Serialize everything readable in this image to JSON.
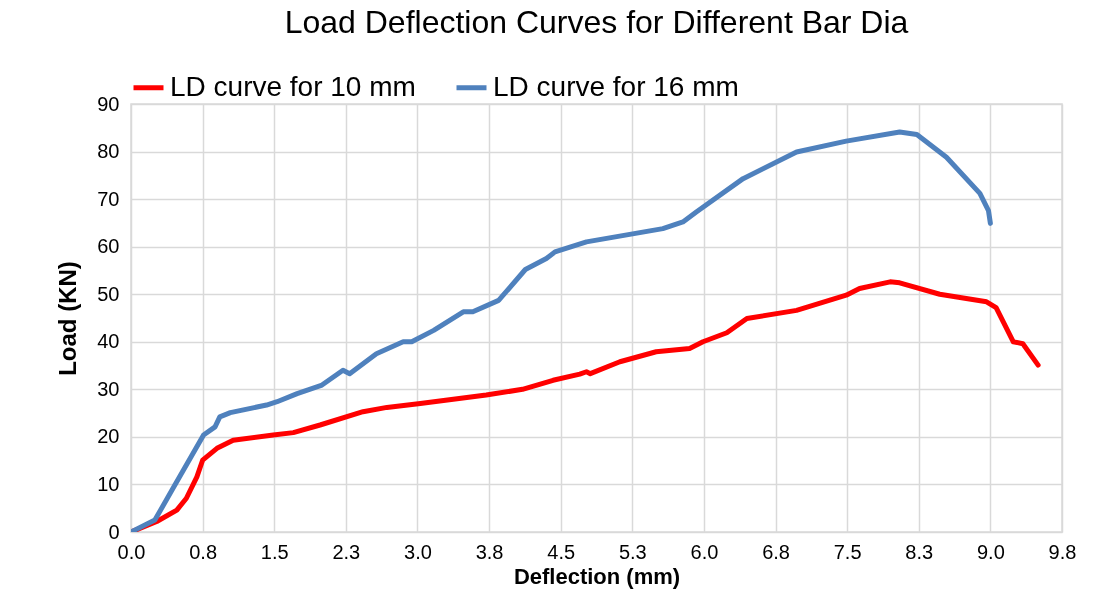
{
  "chart_data": {
    "type": "line",
    "title": "Load Deflection Curves for Different Bar Dia",
    "xlabel": "Deflection (mm)",
    "ylabel": "Load (KN)",
    "xlim": [
      0,
      9.75
    ],
    "ylim": [
      0,
      90
    ],
    "xticks": [
      {
        "value": 0,
        "label": "0.0"
      },
      {
        "value": 0.75,
        "label": "0.8"
      },
      {
        "value": 1.5,
        "label": "1.5"
      },
      {
        "value": 2.25,
        "label": "2.3"
      },
      {
        "value": 3,
        "label": "3.0"
      },
      {
        "value": 3.75,
        "label": "3.8"
      },
      {
        "value": 4.5,
        "label": "4.5"
      },
      {
        "value": 5.25,
        "label": "5.3"
      },
      {
        "value": 6,
        "label": "6.0"
      },
      {
        "value": 6.75,
        "label": "6.8"
      },
      {
        "value": 7.5,
        "label": "7.5"
      },
      {
        "value": 8.25,
        "label": "8.3"
      },
      {
        "value": 9,
        "label": "9.0"
      },
      {
        "value": 9.75,
        "label": "9.8"
      }
    ],
    "yticks": [
      0,
      10,
      20,
      30,
      40,
      50,
      60,
      70,
      80,
      90
    ],
    "grid": true,
    "legend": "top",
    "marker": "none",
    "line_style": "solid",
    "series": [
      {
        "name": "LD curve for 10 mm",
        "color": "#ff0000",
        "x": [
          0,
          0.27,
          0.48,
          0.58,
          0.69,
          0.75,
          0.9,
          1.07,
          1.49,
          1.7,
          1.98,
          2.43,
          2.68,
          3.03,
          3.72,
          4.1,
          4.42,
          4.7,
          4.77,
          4.81,
          5.12,
          5.5,
          5.85,
          5.99,
          6.24,
          6.45,
          6.97,
          7.49,
          7.63,
          7.95,
          8.05,
          8.47,
          8.96,
          9.06,
          9.24,
          9.34,
          9.5
        ],
        "values": [
          0,
          2.2,
          4.6,
          7.1,
          11.6,
          15.1,
          17.6,
          19.3,
          20.4,
          20.9,
          22.5,
          25.3,
          26.2,
          27,
          28.8,
          30,
          31.9,
          33.2,
          33.7,
          33.3,
          35.8,
          37.9,
          38.6,
          40,
          41.9,
          44.9,
          46.6,
          49.8,
          51.2,
          52.6,
          52.4,
          50,
          48.4,
          47.2,
          40,
          39.6,
          35.1
        ]
      },
      {
        "name": "LD curve for 16 mm",
        "color": "#4f81bd",
        "x": [
          0,
          0.25,
          0.44,
          0.76,
          0.88,
          0.93,
          1.04,
          1.42,
          1.53,
          1.74,
          2,
          2.22,
          2.29,
          2.57,
          2.85,
          2.94,
          3.17,
          3.48,
          3.58,
          3.85,
          4.13,
          4.35,
          4.44,
          4.77,
          5.57,
          5.78,
          5.92,
          6.41,
          6.97,
          7.49,
          8.05,
          8.23,
          8.54,
          8.89,
          8.98,
          9
        ],
        "values": [
          0,
          2.5,
          9.2,
          20.4,
          22.1,
          24.2,
          25.1,
          26.7,
          27.4,
          29.1,
          30.9,
          34,
          33.3,
          37.5,
          40,
          40,
          42.4,
          46.3,
          46.3,
          48.7,
          55.2,
          57.5,
          58.9,
          61,
          63.8,
          65.2,
          67.3,
          74.3,
          79.9,
          82.2,
          84.1,
          83.6,
          78.8,
          71.2,
          67.6,
          64.9
        ]
      }
    ]
  }
}
